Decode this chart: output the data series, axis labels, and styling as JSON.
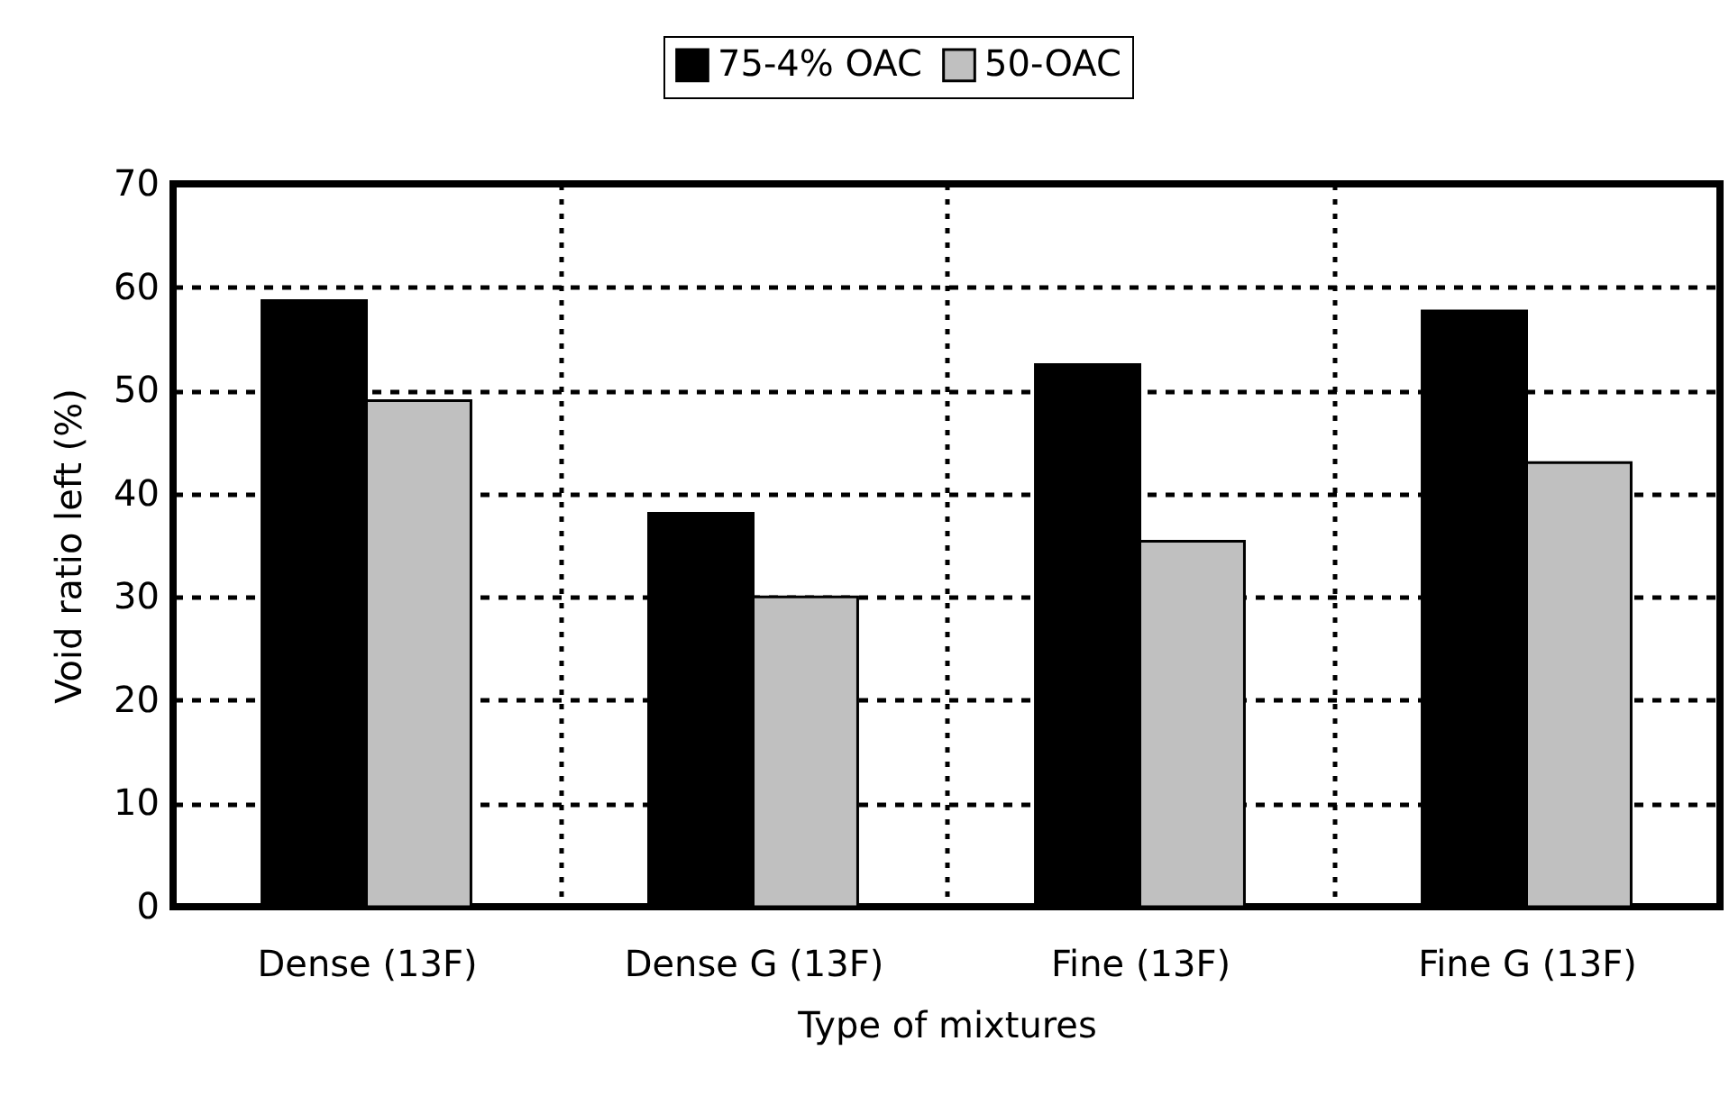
{
  "chart_data": {
    "type": "bar",
    "xlabel": "Type of mixtures",
    "ylabel": "Void ratio left (%)",
    "categories": [
      "Dense (13F)",
      "Dense G (13F)",
      "Fine (13F)",
      "Fine G (13F)"
    ],
    "series": [
      {
        "name": "75-4% OAC",
        "color": "#000000",
        "values": [
          58.7,
          38.1,
          52.5,
          57.7
        ]
      },
      {
        "name": "50-OAC",
        "color": "#c0c0c0",
        "values": [
          49.0,
          30.0,
          35.4,
          43.0
        ]
      }
    ],
    "ylim": [
      0,
      70
    ],
    "yticks": [
      0,
      10,
      20,
      30,
      40,
      50,
      60,
      70
    ],
    "grid": true,
    "legend": "top"
  }
}
